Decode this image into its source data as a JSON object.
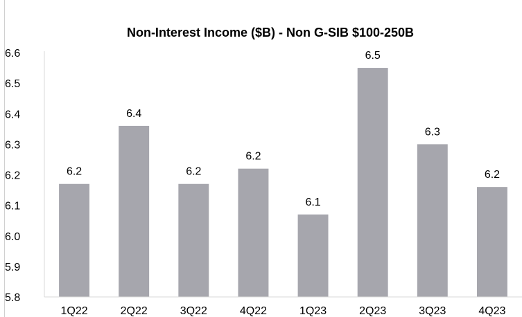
{
  "chart_data": {
    "type": "bar",
    "title": "Non-Interest Income ($B) - Non G-SIB $100-250B",
    "xlabel": "",
    "ylabel": "",
    "categories": [
      "1Q22",
      "2Q22",
      "3Q22",
      "4Q22",
      "1Q23",
      "2Q23",
      "3Q23",
      "4Q23"
    ],
    "values": [
      6.17,
      6.36,
      6.17,
      6.22,
      6.07,
      6.55,
      6.3,
      6.16
    ],
    "data_labels": [
      "6.2",
      "6.4",
      "6.2",
      "6.2",
      "6.1",
      "6.5",
      "6.3",
      "6.2"
    ],
    "ylim": [
      5.8,
      6.6
    ],
    "yticks": [
      "5.8",
      "5.9",
      "6.0",
      "6.1",
      "6.2",
      "6.3",
      "6.4",
      "6.5",
      "6.6"
    ],
    "grid": false,
    "legend": "none",
    "bar_color": "#a6a6ad",
    "axis_color": "#d9d9d9"
  }
}
